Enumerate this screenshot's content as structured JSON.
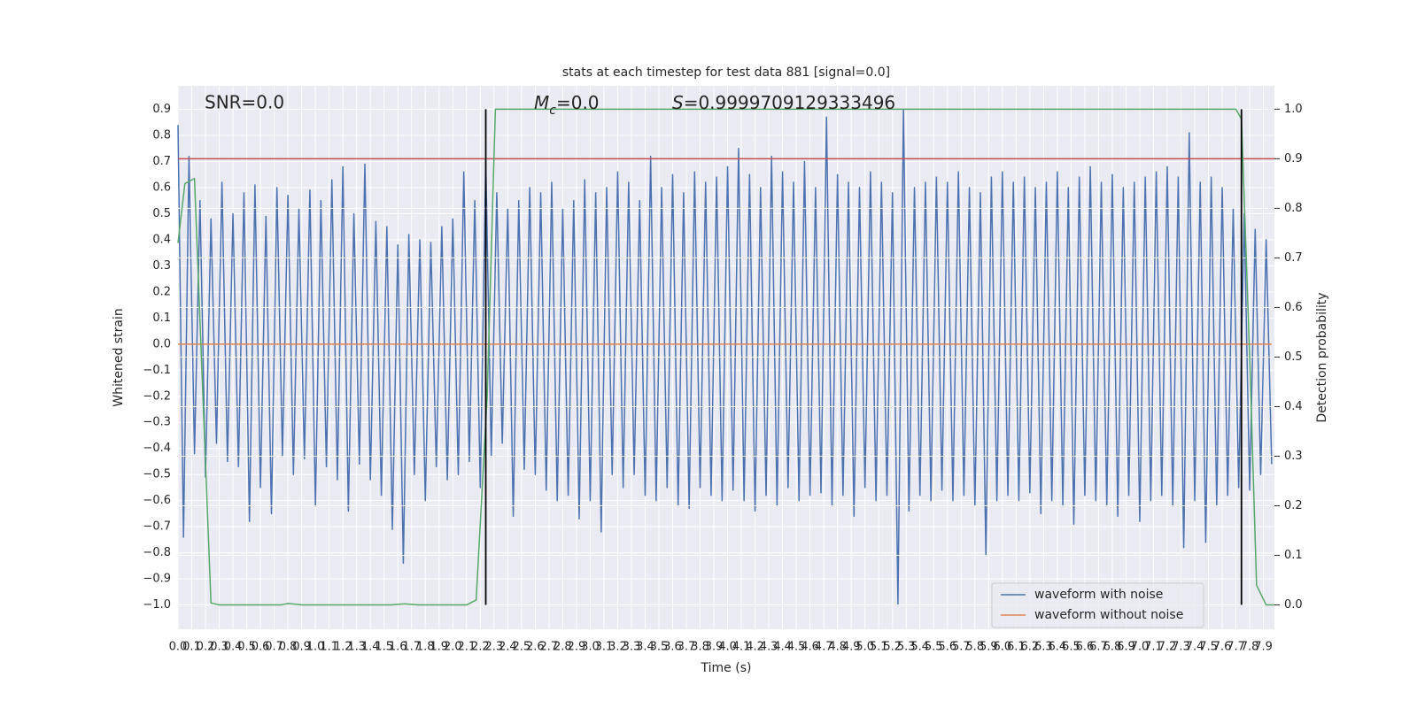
{
  "chart_data": {
    "type": "line",
    "title": "stats at each timestep for test data 881 [signal=0.0]",
    "xlabel": "Time (s)",
    "ylabel": "Whitened strain",
    "y2label": "Detection probability",
    "annotations": [
      {
        "text": "SNR=0.0"
      },
      {
        "main": "M",
        "sub": "c",
        "tail": "=0.0"
      },
      {
        "main": "S",
        "tail": "=0.9999709129333496"
      }
    ],
    "xlim": [
      0,
      7.98
    ],
    "ylim": [
      -1.093,
      0.99
    ],
    "y2lim": [
      -0.049,
      1.047
    ],
    "grid": true,
    "legend": "lower right",
    "xticks": [
      {
        "value": 0,
        "label": "0.0"
      },
      0.1,
      0.2,
      0.3,
      0.4,
      0.5,
      0.6,
      0.7,
      0.8,
      0.9,
      {
        "value": 1,
        "label": "1.0"
      },
      1.1,
      1.2,
      1.3,
      1.4,
      1.5,
      1.6,
      1.7,
      1.8,
      1.9,
      {
        "value": 2,
        "label": "2.0"
      },
      2.1,
      2.2,
      2.3,
      2.4,
      2.5,
      2.6,
      2.7,
      2.8,
      2.9,
      {
        "value": 3,
        "label": "3.0"
      },
      3.1,
      3.2,
      3.3,
      3.4,
      3.5,
      3.6,
      3.7,
      3.8,
      3.9,
      {
        "value": 4,
        "label": "4.0"
      },
      4.1,
      4.2,
      4.3,
      4.4,
      4.5,
      4.6,
      4.7,
      4.8,
      4.9,
      {
        "value": 5,
        "label": "5.0"
      },
      5.1,
      5.2,
      5.3,
      5.4,
      5.5,
      5.6,
      5.7,
      5.8,
      5.9,
      {
        "value": 6,
        "label": "6.0"
      },
      6.1,
      6.2,
      6.3,
      6.4,
      6.5,
      6.6,
      6.7,
      6.8,
      6.9,
      {
        "value": 7,
        "label": "7.0"
      },
      7.1,
      7.2,
      7.3,
      7.4,
      7.5,
      7.6,
      7.7,
      7.8,
      7.9
    ],
    "yticks": [
      {
        "value": -1.0,
        "label": "−1.0"
      },
      {
        "value": -0.9,
        "label": "−0.9"
      },
      {
        "value": -0.8,
        "label": "−0.8"
      },
      {
        "value": -0.7,
        "label": "−0.7"
      },
      {
        "value": -0.6,
        "label": "−0.6"
      },
      {
        "value": -0.5,
        "label": "−0.5"
      },
      {
        "value": -0.4,
        "label": "−0.4"
      },
      {
        "value": -0.3,
        "label": "−0.3"
      },
      {
        "value": -0.2,
        "label": "−0.2"
      },
      {
        "value": -0.1,
        "label": "−0.1"
      },
      {
        "value": 0,
        "label": "0.0"
      },
      0.1,
      0.2,
      0.3,
      0.4,
      0.5,
      0.6,
      0.7,
      0.8,
      0.9
    ],
    "y2ticks": [
      {
        "value": 0,
        "label": "0.0"
      },
      0.1,
      0.2,
      0.3,
      0.4,
      0.5,
      0.6,
      0.7,
      0.8,
      0.9,
      {
        "value": 1,
        "label": "1.0"
      }
    ],
    "series": [
      {
        "name": "waveform with noise",
        "color": "#4c72b0",
        "x": [
          0,
          0.04,
          0.08,
          0.12,
          0.16,
          0.2,
          0.24,
          0.28,
          0.32,
          0.36,
          0.4,
          0.44,
          0.48,
          0.52,
          0.56,
          0.6,
          0.64,
          0.68,
          0.72,
          0.76,
          0.8,
          0.84,
          0.88,
          0.92,
          0.96,
          1,
          1.04,
          1.08,
          1.12,
          1.16,
          1.2,
          1.24,
          1.28,
          1.32,
          1.36,
          1.4,
          1.44,
          1.48,
          1.52,
          1.56,
          1.6,
          1.64,
          1.68,
          1.72,
          1.76,
          1.8,
          1.84,
          1.88,
          1.92,
          1.96,
          2,
          2.04,
          2.08,
          2.12,
          2.16,
          2.2,
          2.24,
          2.28,
          2.32,
          2.36,
          2.4,
          2.44,
          2.48,
          2.52,
          2.56,
          2.6,
          2.64,
          2.68,
          2.72,
          2.76,
          2.8,
          2.84,
          2.88,
          2.92,
          2.96,
          3,
          3.04,
          3.08,
          3.12,
          3.16,
          3.2,
          3.24,
          3.28,
          3.32,
          3.36,
          3.4,
          3.44,
          3.48,
          3.52,
          3.56,
          3.6,
          3.64,
          3.68,
          3.72,
          3.76,
          3.8,
          3.84,
          3.88,
          3.92,
          3.96,
          4,
          4.04,
          4.08,
          4.12,
          4.16,
          4.2,
          4.24,
          4.28,
          4.32,
          4.36,
          4.4,
          4.44,
          4.48,
          4.52,
          4.56,
          4.6,
          4.64,
          4.68,
          4.72,
          4.76,
          4.8,
          4.84,
          4.88,
          4.92,
          4.96,
          5,
          5.04,
          5.08,
          5.12,
          5.16,
          5.2,
          5.24,
          5.28,
          5.32,
          5.36,
          5.4,
          5.44,
          5.48,
          5.52,
          5.56,
          5.6,
          5.64,
          5.68,
          5.72,
          5.76,
          5.8,
          5.84,
          5.88,
          5.92,
          5.96,
          6,
          6.04,
          6.08,
          6.12,
          6.16,
          6.2,
          6.24,
          6.28,
          6.32,
          6.36,
          6.4,
          6.44,
          6.48,
          6.52,
          6.56,
          6.6,
          6.64,
          6.68,
          6.72,
          6.76,
          6.8,
          6.84,
          6.88,
          6.92,
          6.96,
          7,
          7.04,
          7.08,
          7.12,
          7.16,
          7.2,
          7.24,
          7.28,
          7.32,
          7.36,
          7.4,
          7.44,
          7.48,
          7.52,
          7.56,
          7.6,
          7.64,
          7.68,
          7.72,
          7.76,
          7.8,
          7.84,
          7.88,
          7.92,
          7.96
        ],
        "values": [
          0.84,
          -0.74,
          0.72,
          -0.42,
          0.55,
          -0.51,
          0.48,
          -0.38,
          0.62,
          -0.45,
          0.5,
          -0.47,
          0.58,
          -0.68,
          0.61,
          -0.55,
          0.49,
          -0.65,
          0.6,
          -0.43,
          0.57,
          -0.5,
          0.52,
          -0.44,
          0.59,
          -0.62,
          0.55,
          -0.47,
          0.63,
          -0.52,
          0.68,
          -0.64,
          0.5,
          -0.46,
          0.69,
          -0.52,
          0.47,
          -0.58,
          0.45,
          -0.71,
          0.38,
          -0.84,
          0.42,
          -0.5,
          0.4,
          -0.6,
          0.39,
          -0.47,
          0.45,
          -0.52,
          0.48,
          -0.5,
          0.66,
          -0.45,
          0.55,
          -0.55,
          0.7,
          -0.43,
          0.58,
          -0.38,
          0.52,
          -0.66,
          0.55,
          -0.48,
          0.6,
          -0.5,
          0.58,
          -0.56,
          0.62,
          -0.6,
          0.52,
          -0.58,
          0.55,
          -0.67,
          0.63,
          -0.6,
          0.58,
          -0.72,
          0.6,
          -0.5,
          0.66,
          -0.55,
          0.62,
          -0.5,
          0.55,
          -0.58,
          0.72,
          -0.6,
          0.6,
          -0.55,
          0.65,
          -0.62,
          0.58,
          -0.63,
          0.66,
          -0.55,
          0.62,
          -0.58,
          0.64,
          -0.6,
          0.68,
          -0.56,
          0.75,
          -0.6,
          0.65,
          -0.64,
          0.6,
          -0.58,
          0.72,
          -0.62,
          0.66,
          -0.55,
          0.62,
          -0.6,
          0.7,
          -0.58,
          0.6,
          -0.57,
          0.87,
          -0.62,
          0.65,
          -0.58,
          0.62,
          -0.66,
          0.6,
          -0.55,
          0.66,
          -0.6,
          0.62,
          -0.58,
          0.58,
          -1.0,
          0.9,
          -0.64,
          0.6,
          -0.58,
          0.62,
          -0.6,
          0.64,
          -0.56,
          0.62,
          -0.6,
          0.66,
          -0.58,
          0.6,
          -0.62,
          0.58,
          -0.81,
          0.64,
          -0.6,
          0.66,
          -0.58,
          0.62,
          -0.6,
          0.64,
          -0.57,
          0.6,
          -0.65,
          0.62,
          -0.6,
          0.66,
          -0.62,
          0.6,
          -0.69,
          0.64,
          -0.58,
          0.68,
          -0.6,
          0.62,
          -0.62,
          0.65,
          -0.66,
          0.6,
          -0.58,
          0.62,
          -0.68,
          0.64,
          -0.6,
          0.66,
          -0.58,
          0.68,
          -0.62,
          0.64,
          -0.78,
          0.81,
          -0.6,
          0.62,
          -0.76,
          0.64,
          -0.62,
          0.6,
          -0.58,
          0.52,
          -0.55,
          0.5,
          -0.56,
          0.44,
          -0.5,
          0.4,
          -0.46
        ]
      },
      {
        "name": "waveform without noise",
        "color": "#dd8452",
        "x": [
          0,
          7.96
        ],
        "values": [
          0,
          0
        ]
      }
    ],
    "detection": {
      "color": "#55a868",
      "axis": "y2",
      "x": [
        0,
        0.05,
        0.12,
        0.18,
        0.24,
        0.3,
        0.75,
        0.8,
        0.9,
        1.55,
        1.65,
        1.75,
        2.1,
        2.17,
        2.25,
        2.31,
        7.7,
        7.74,
        7.8,
        7.85,
        7.92,
        7.98
      ],
      "values": [
        0.73,
        0.85,
        0.86,
        0.43,
        0.004,
        0,
        0,
        0.003,
        0,
        0,
        0.002,
        0,
        0,
        0.01,
        0.42,
        1.0,
        1.0,
        0.98,
        0.5,
        0.04,
        0,
        0
      ]
    },
    "threshold": {
      "value": 0.9,
      "axis": "y2",
      "color": "#c44e52"
    },
    "vlines": {
      "x": [
        2.24,
        7.74
      ],
      "color": "#000000"
    }
  }
}
